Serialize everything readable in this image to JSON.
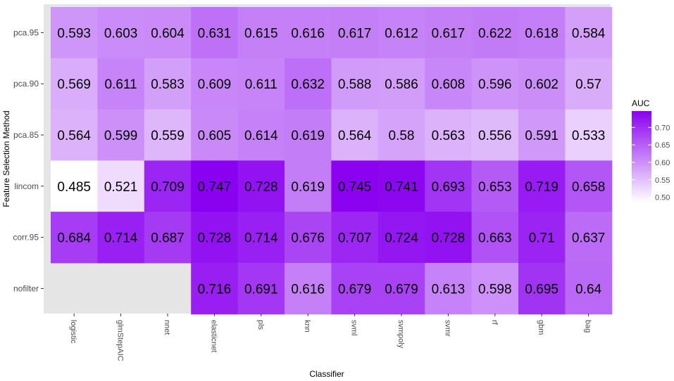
{
  "chart_data": {
    "type": "heatmap",
    "title": "",
    "xlabel": "Classifier",
    "ylabel": "Feature Selection Method",
    "x_categories": [
      "logistic",
      "glmStepAIC",
      "nnet",
      "elasticnet",
      "pls",
      "knn",
      "svml",
      "svmpoly",
      "svmr",
      "rf",
      "gbm",
      "bag"
    ],
    "y_categories": [
      "pca.95",
      "pca.90",
      "pca.85",
      "lincom",
      "corr.95",
      "nofilter"
    ],
    "values": [
      [
        0.593,
        0.603,
        0.604,
        0.631,
        0.615,
        0.616,
        0.617,
        0.612,
        0.617,
        0.622,
        0.618,
        0.584
      ],
      [
        0.569,
        0.611,
        0.583,
        0.609,
        0.611,
        0.632,
        0.588,
        0.586,
        0.608,
        0.596,
        0.602,
        0.57
      ],
      [
        0.564,
        0.599,
        0.559,
        0.605,
        0.614,
        0.619,
        0.564,
        0.58,
        0.563,
        0.556,
        0.591,
        0.533
      ],
      [
        0.485,
        0.521,
        0.709,
        0.747,
        0.728,
        0.619,
        0.745,
        0.741,
        0.693,
        0.653,
        0.719,
        0.658
      ],
      [
        0.684,
        0.714,
        0.687,
        0.728,
        0.714,
        0.676,
        0.707,
        0.724,
        0.728,
        0.663,
        0.71,
        0.637
      ],
      [
        null,
        null,
        null,
        0.716,
        0.691,
        0.616,
        0.679,
        0.679,
        0.613,
        0.598,
        0.695,
        0.64
      ]
    ],
    "labels": [
      [
        "0.593",
        "0.603",
        "0.604",
        "0.631",
        "0.615",
        "0.616",
        "0.617",
        "0.612",
        "0.617",
        "0.622",
        "0.618",
        "0.584"
      ],
      [
        "0.569",
        "0.611",
        "0.583",
        "0.609",
        "0.611",
        "0.632",
        "0.588",
        "0.586",
        "0.608",
        "0.596",
        "0.602",
        "0.57"
      ],
      [
        "0.564",
        "0.599",
        "0.559",
        "0.605",
        "0.614",
        "0.619",
        "0.564",
        "0.58",
        "0.563",
        "0.556",
        "0.591",
        "0.533"
      ],
      [
        "0.485",
        "0.521",
        "0.709",
        "0.747",
        "0.728",
        "0.619",
        "0.745",
        "0.741",
        "0.693",
        "0.653",
        "0.719",
        "0.658"
      ],
      [
        "0.684",
        "0.714",
        "0.687",
        "0.728",
        "0.714",
        "0.676",
        "0.707",
        "0.724",
        "0.728",
        "0.663",
        "0.71",
        "0.637"
      ],
      [
        null,
        null,
        null,
        "0.716",
        "0.691",
        "0.616",
        "0.679",
        "0.679",
        "0.613",
        "0.598",
        "0.695",
        "0.64"
      ]
    ],
    "legend": {
      "title": "AUC",
      "ticks": [
        0.5,
        0.55,
        0.6,
        0.65,
        0.7
      ],
      "tick_labels": [
        "0.50",
        "0.55",
        "0.60",
        "0.65",
        "0.70"
      ],
      "placement": "right"
    },
    "color_scale": {
      "low_value": 0.485,
      "high_value": 0.747,
      "low_color": "#ffffff",
      "high_color": "#8a00f0"
    },
    "panel_background": "#e5e5e5"
  }
}
